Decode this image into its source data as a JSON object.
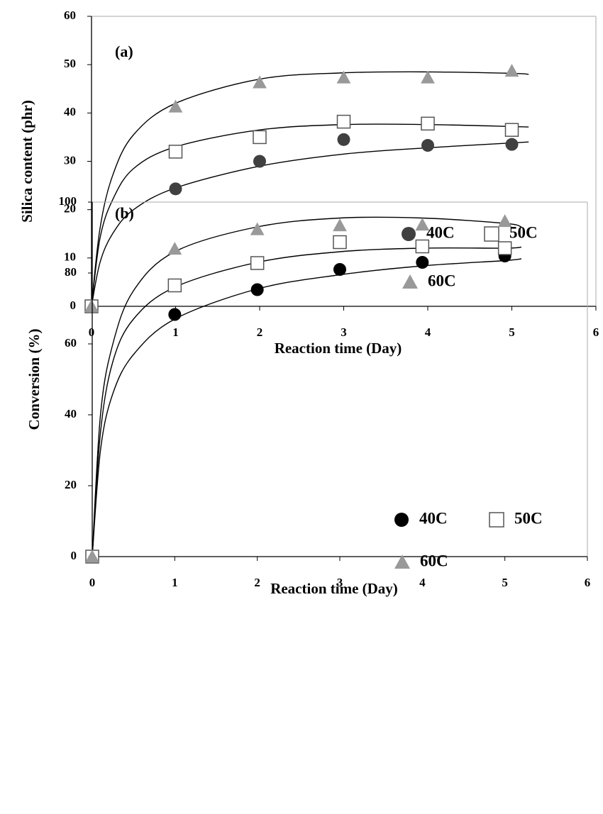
{
  "chart_data": [
    {
      "type": "scatter",
      "panel_label": "(a)",
      "x_label": "Reaction time (Day)",
      "y_label": "Silica content (phr)",
      "x": [
        0,
        1,
        2,
        3,
        4,
        5
      ],
      "xlim": [
        0,
        6
      ],
      "xticks": [
        0,
        1,
        2,
        3,
        4,
        5,
        6
      ],
      "ylim": [
        0,
        60
      ],
      "yticks": [
        0,
        10,
        20,
        30,
        40,
        50,
        60
      ],
      "series": [
        {
          "name": "40C",
          "marker": "circle",
          "color": "#404040",
          "values": [
            0,
            24.3,
            30,
            34.5,
            33.3,
            33.5
          ],
          "fit": {
            "x": [
              0,
              0.1,
              0.25,
              0.5,
              1,
              2,
              3,
              4,
              5,
              5.2
            ],
            "values": [
              0,
              9,
              15,
              20,
              24.5,
              29,
              31.5,
              32.8,
              33.8,
              34
            ]
          }
        },
        {
          "name": "50C",
          "marker": "square",
          "color": "#555555",
          "values": [
            0,
            32,
            35,
            38.2,
            37.8,
            36.5
          ],
          "fit": {
            "x": [
              0,
              0.1,
              0.25,
              0.5,
              1,
              2,
              3,
              4,
              5,
              5.2
            ],
            "values": [
              0,
              14,
              22,
              28.5,
              33,
              36.5,
              37.6,
              37.6,
              37.2,
              37.1
            ]
          }
        },
        {
          "name": "60C",
          "marker": "triangle",
          "color": "#999999",
          "values": [
            0,
            41.3,
            46.3,
            47.3,
            47.3,
            48.7
          ],
          "fit": {
            "x": [
              0,
              0.1,
              0.25,
              0.5,
              1,
              2,
              3,
              4,
              5,
              5.2
            ],
            "values": [
              0,
              16,
              27,
              35.5,
              42,
              47,
              48.3,
              48.5,
              48.2,
              48
            ]
          }
        }
      ]
    },
    {
      "type": "scatter",
      "panel_label": "(b)",
      "x_label": "Reaction time (Day)",
      "y_label": "Conversion (%)",
      "x": [
        0,
        1,
        2,
        3,
        4,
        5
      ],
      "xlim": [
        0,
        6
      ],
      "xticks": [
        0,
        1,
        2,
        3,
        4,
        5,
        6
      ],
      "ylim": [
        0,
        100
      ],
      "yticks": [
        0,
        20,
        40,
        60,
        80,
        100
      ],
      "series": [
        {
          "name": "40C",
          "marker": "circle",
          "color": "#000000",
          "values": [
            0,
            68.3,
            75.3,
            81,
            83,
            84.8
          ],
          "fit": {
            "x": [
              0,
              0.1,
              0.25,
              0.5,
              1,
              2,
              3,
              4,
              5,
              5.2
            ],
            "values": [
              0,
              30,
              46,
              57,
              67,
              75.5,
              79.5,
              82,
              83.5,
              84
            ]
          }
        },
        {
          "name": "50C",
          "marker": "square",
          "color": "#555555",
          "values": [
            0,
            76.5,
            82.8,
            88.7,
            87.5,
            87
          ],
          "fit": {
            "x": [
              0,
              0.1,
              0.25,
              0.5,
              1,
              2,
              3,
              4,
              5,
              5.2
            ],
            "values": [
              0,
              35,
              55,
              67,
              76,
              83,
              86,
              87,
              87,
              87.3
            ]
          }
        },
        {
          "name": "60C",
          "marker": "triangle",
          "color": "#999999",
          "values": [
            0,
            86.8,
            92.3,
            93.4,
            93.6,
            94.6
          ],
          "fit": {
            "x": [
              0,
              0.1,
              0.25,
              0.5,
              1,
              2,
              3,
              4,
              5,
              5.2
            ],
            "values": [
              0,
              40,
              60,
              75,
              86,
              93,
              95.5,
              95.5,
              94,
              93
            ]
          }
        }
      ]
    }
  ]
}
